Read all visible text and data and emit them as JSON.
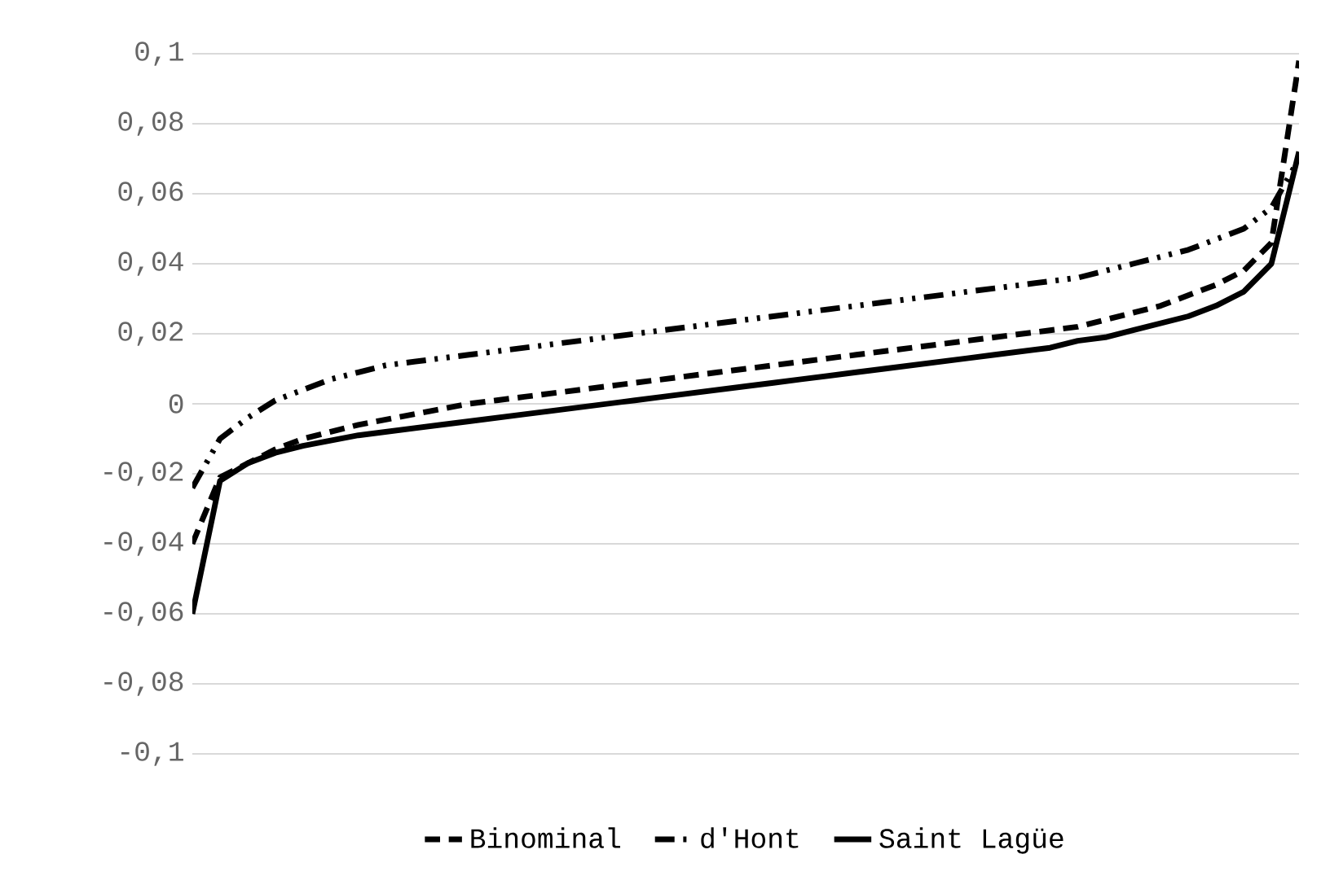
{
  "chart_data": {
    "type": "line",
    "categories": [
      null,
      null,
      null,
      null,
      null,
      null,
      null,
      null,
      null,
      null,
      null,
      null,
      null,
      null,
      null,
      null,
      null,
      null,
      null,
      null,
      null,
      null,
      null,
      null,
      null,
      null,
      null,
      null,
      null,
      null,
      null,
      null,
      null,
      null,
      null,
      null,
      null,
      null,
      null,
      null,
      null
    ],
    "series": [
      {
        "name": "Binominal",
        "color": "#000000",
        "line_style": "dashed",
        "values": [
          -0.04,
          -0.021,
          -0.017,
          -0.013,
          -0.01,
          -0.008,
          -0.006,
          -0.0045,
          -0.003,
          -0.0015,
          0.0,
          0.001,
          0.002,
          0.003,
          0.004,
          0.005,
          0.006,
          0.007,
          0.008,
          0.009,
          0.01,
          0.011,
          0.012,
          0.013,
          0.014,
          0.015,
          0.016,
          0.017,
          0.018,
          0.019,
          0.02,
          0.021,
          0.022,
          0.024,
          0.026,
          0.028,
          0.031,
          0.034,
          0.038,
          0.046,
          0.098
        ]
      },
      {
        "name": "d'Hont",
        "color": "#000000",
        "line_style": "dashdot",
        "values": [
          -0.024,
          -0.01,
          -0.004,
          0.001,
          0.004,
          0.007,
          0.009,
          0.011,
          0.012,
          0.013,
          0.014,
          0.015,
          0.016,
          0.017,
          0.018,
          0.019,
          0.02,
          0.021,
          0.022,
          0.023,
          0.024,
          0.025,
          0.026,
          0.027,
          0.028,
          0.029,
          0.03,
          0.031,
          0.032,
          0.033,
          0.034,
          0.035,
          0.036,
          0.038,
          0.04,
          0.042,
          0.044,
          0.047,
          0.05,
          0.056,
          0.07
        ]
      },
      {
        "name": "Saint Lagüe",
        "color": "#000000",
        "line_style": "solid",
        "values": [
          -0.06,
          -0.022,
          -0.017,
          -0.014,
          -0.012,
          -0.0105,
          -0.009,
          -0.008,
          -0.007,
          -0.006,
          -0.005,
          -0.004,
          -0.003,
          -0.002,
          -0.001,
          0.0,
          0.001,
          0.002,
          0.003,
          0.004,
          0.005,
          0.006,
          0.007,
          0.008,
          0.009,
          0.01,
          0.011,
          0.012,
          0.013,
          0.014,
          0.015,
          0.016,
          0.018,
          0.019,
          0.021,
          0.023,
          0.025,
          0.028,
          0.032,
          0.04,
          0.072
        ]
      }
    ],
    "ylim": [
      -0.1,
      0.1
    ],
    "yticks": [
      {
        "value": -0.1,
        "label": "-0,1"
      },
      {
        "value": -0.08,
        "label": "-0,08"
      },
      {
        "value": -0.06,
        "label": "-0,06"
      },
      {
        "value": -0.04,
        "label": "-0,04"
      },
      {
        "value": -0.02,
        "label": "-0,02"
      },
      0,
      {
        "value": 0.02,
        "label": "0,02"
      },
      {
        "value": 0.04,
        "label": "0,04"
      },
      {
        "value": 0.06,
        "label": "0,06"
      },
      {
        "value": 0.08,
        "label": "0,08"
      },
      {
        "value": 0.1,
        "label": "0,1"
      }
    ],
    "grid": "y",
    "legend": "bottom",
    "marker": "none",
    "tick_labels": "y"
  }
}
